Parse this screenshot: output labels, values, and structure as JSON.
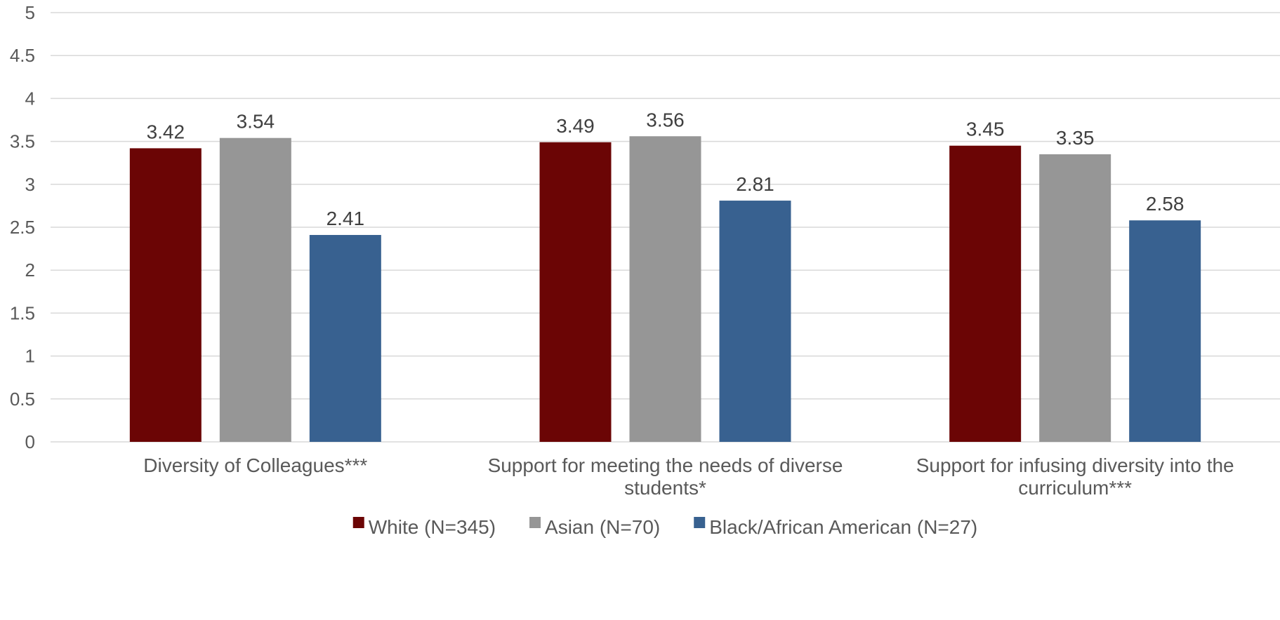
{
  "chart_data": {
    "type": "bar",
    "categories": [
      [
        "Diversity of Colleagues***"
      ],
      [
        "Support for meeting the needs of diverse",
        "students*"
      ],
      [
        "Support for infusing diversity into the",
        "curriculum***"
      ]
    ],
    "series": [
      {
        "name": "White (N=345)",
        "color": "#6b0505",
        "values": [
          3.42,
          3.49,
          3.45
        ]
      },
      {
        "name": "Asian (N=70)",
        "color": "#969696",
        "values": [
          3.54,
          3.56,
          3.35
        ]
      },
      {
        "name": "Black/African American (N=27)",
        "color": "#386190",
        "values": [
          2.41,
          2.81,
          2.58
        ]
      }
    ],
    "ylim": [
      0,
      5
    ],
    "yticks": [
      {
        "value": 0,
        "label": "0"
      },
      {
        "value": 0.5,
        "label": "0.5"
      },
      {
        "value": 1,
        "label": "1"
      },
      {
        "value": 1.5,
        "label": "1.5"
      },
      {
        "value": 2,
        "label": "2"
      },
      {
        "value": 2.5,
        "label": "2.5"
      },
      {
        "value": 3,
        "label": "3"
      },
      {
        "value": 3.5,
        "label": "3.5"
      },
      {
        "value": 4,
        "label": "4"
      },
      {
        "value": 4.5,
        "label": "4.5"
      },
      {
        "value": 5,
        "label": "5"
      }
    ],
    "grid": true,
    "legend": "bottom",
    "title": "",
    "xlabel": "",
    "ylabel": ""
  }
}
